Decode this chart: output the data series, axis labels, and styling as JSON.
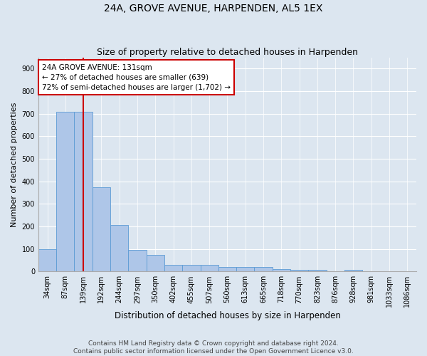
{
  "title": "24A, GROVE AVENUE, HARPENDEN, AL5 1EX",
  "subtitle": "Size of property relative to detached houses in Harpenden",
  "xlabel": "Distribution of detached houses by size in Harpenden",
  "ylabel": "Number of detached properties",
  "categories": [
    "34sqm",
    "87sqm",
    "139sqm",
    "192sqm",
    "244sqm",
    "297sqm",
    "350sqm",
    "402sqm",
    "455sqm",
    "507sqm",
    "560sqm",
    "613sqm",
    "665sqm",
    "718sqm",
    "770sqm",
    "823sqm",
    "876sqm",
    "928sqm",
    "981sqm",
    "1033sqm",
    "1086sqm"
  ],
  "values": [
    100,
    710,
    710,
    375,
    205,
    95,
    75,
    30,
    30,
    30,
    20,
    20,
    20,
    10,
    8,
    8,
    0,
    8,
    0,
    0,
    0
  ],
  "bar_color": "#aec6e8",
  "bar_edgecolor": "#5b9bd5",
  "vline_x_index": 2,
  "vline_color": "#cc0000",
  "annotation_line1": "24A GROVE AVENUE: 131sqm",
  "annotation_line2": "← 27% of detached houses are smaller (639)",
  "annotation_line3": "72% of semi-detached houses are larger (1,702) →",
  "annotation_box_edgecolor": "#cc0000",
  "annotation_box_facecolor": "#ffffff",
  "ylim": [
    0,
    950
  ],
  "yticks": [
    0,
    100,
    200,
    300,
    400,
    500,
    600,
    700,
    800,
    900
  ],
  "background_color": "#dce6f0",
  "footer_line1": "Contains HM Land Registry data © Crown copyright and database right 2024.",
  "footer_line2": "Contains public sector information licensed under the Open Government Licence v3.0.",
  "title_fontsize": 10,
  "subtitle_fontsize": 9,
  "xlabel_fontsize": 8.5,
  "ylabel_fontsize": 8,
  "tick_fontsize": 7,
  "footer_fontsize": 6.5,
  "annotation_fontsize": 7.5
}
